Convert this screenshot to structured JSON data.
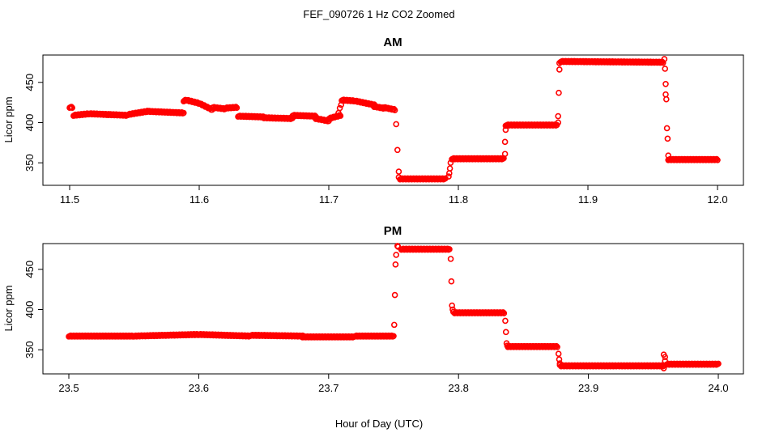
{
  "figure": {
    "title": "FEF_090726  1 Hz CO2 Zoomed",
    "xlabel": "Hour of Day (UTC)"
  },
  "colors": {
    "points": "#ff0000",
    "axes": "#000000"
  },
  "chart_data": [
    {
      "type": "scatter",
      "title": "AM",
      "ylabel": "Licor ppm",
      "xlim": [
        11.5,
        12.0
      ],
      "ylim": [
        322,
        484
      ],
      "xticks": [
        "11.5",
        "11.6",
        "11.7",
        "11.8",
        "11.9",
        "12.0"
      ],
      "yticks": [
        "350",
        "400",
        "450"
      ],
      "xtick_values": [
        11.5,
        11.6,
        11.7,
        11.8,
        11.9,
        12.0
      ],
      "ytick_values": [
        350,
        400,
        450
      ],
      "marker": "open-circle",
      "segments": [
        {
          "x": [
            11.5,
            11.502
          ],
          "y": [
            419,
            419
          ]
        },
        {
          "x": [
            11.503,
            11.515
          ],
          "y": [
            409,
            411
          ]
        },
        {
          "x": [
            11.515,
            11.53
          ],
          "y": [
            411,
            410
          ]
        },
        {
          "x": [
            11.53,
            11.545
          ],
          "y": [
            410,
            409
          ]
        },
        {
          "x": [
            11.545,
            11.56
          ],
          "y": [
            410,
            414
          ]
        },
        {
          "x": [
            11.56,
            11.588
          ],
          "y": [
            414,
            412
          ]
        },
        {
          "x": [
            11.588,
            11.59
          ],
          "y": [
            427,
            428
          ]
        },
        {
          "x": [
            11.59,
            11.6
          ],
          "y": [
            428,
            424
          ]
        },
        {
          "x": [
            11.6,
            11.61
          ],
          "y": [
            424,
            416
          ]
        },
        {
          "x": [
            11.61,
            11.62
          ],
          "y": [
            419,
            417
          ]
        },
        {
          "x": [
            11.62,
            11.629
          ],
          "y": [
            418,
            419
          ]
        },
        {
          "x": [
            11.63,
            11.65
          ],
          "y": [
            408,
            407
          ]
        },
        {
          "x": [
            11.65,
            11.672
          ],
          "y": [
            406,
            405
          ]
        },
        {
          "x": [
            11.672,
            11.69
          ],
          "y": [
            409,
            408
          ]
        },
        {
          "x": [
            11.69,
            11.7
          ],
          "y": [
            405,
            402
          ]
        },
        {
          "x": [
            11.7,
            11.709
          ],
          "y": [
            405,
            409
          ]
        },
        {
          "x": [
            11.71,
            11.72
          ],
          "y": [
            428,
            427
          ]
        },
        {
          "x": [
            11.72,
            11.735
          ],
          "y": [
            427,
            422
          ]
        },
        {
          "x": [
            11.735,
            11.742
          ],
          "y": [
            420,
            418
          ]
        },
        {
          "x": [
            11.742,
            11.751
          ],
          "y": [
            419,
            416
          ]
        },
        {
          "x": [
            11.755,
            11.79
          ],
          "y": [
            330,
            330
          ]
        },
        {
          "x": [
            11.795,
            11.835
          ],
          "y": [
            355,
            355
          ]
        },
        {
          "x": [
            11.837,
            11.876
          ],
          "y": [
            397,
            397
          ]
        },
        {
          "x": [
            11.879,
            11.958
          ],
          "y": [
            476,
            475
          ]
        },
        {
          "x": [
            11.962,
            12.0
          ],
          "y": [
            354,
            354
          ]
        }
      ],
      "transitions": [
        {
          "x": [
            11.7075,
            11.7085,
            11.7095
          ],
          "y": [
            412,
            418,
            422
          ]
        },
        {
          "x": [
            11.752,
            11.753,
            11.754,
            11.754
          ],
          "y": [
            398,
            366,
            339,
            332
          ]
        },
        {
          "x": [
            11.7925,
            11.793,
            11.7935,
            11.794
          ],
          "y": [
            333,
            337,
            343,
            350
          ]
        },
        {
          "x": [
            11.836,
            11.836,
            11.8365,
            11.8365
          ],
          "y": [
            361,
            376,
            391,
            396
          ]
        },
        {
          "x": [
            11.877,
            11.877,
            11.8775,
            11.878,
            11.878
          ],
          "y": [
            400,
            408,
            437,
            466,
            474
          ]
        },
        {
          "x": [
            11.959,
            11.9595,
            11.96,
            11.96,
            11.9605,
            11.961,
            11.9615,
            11.962
          ],
          "y": [
            479,
            467,
            448,
            435,
            429,
            393,
            380,
            359
          ]
        }
      ]
    },
    {
      "type": "scatter",
      "title": "PM",
      "ylabel": "Licor ppm",
      "xlim": [
        23.5,
        24.0
      ],
      "ylim": [
        320,
        482
      ],
      "xticks": [
        "23.5",
        "23.6",
        "23.7",
        "23.8",
        "23.9",
        "24.0"
      ],
      "yticks": [
        "350",
        "400",
        "450"
      ],
      "xtick_values": [
        23.5,
        23.6,
        23.7,
        23.8,
        23.9,
        24.0
      ],
      "ytick_values": [
        350,
        400,
        450
      ],
      "marker": "open-circle",
      "segments": [
        {
          "x": [
            23.5,
            23.55
          ],
          "y": [
            367,
            367
          ]
        },
        {
          "x": [
            23.55,
            23.6
          ],
          "y": [
            367,
            369
          ]
        },
        {
          "x": [
            23.6,
            23.64
          ],
          "y": [
            369,
            367
          ]
        },
        {
          "x": [
            23.64,
            23.68
          ],
          "y": [
            368,
            367
          ]
        },
        {
          "x": [
            23.68,
            23.72
          ],
          "y": [
            366,
            366
          ]
        },
        {
          "x": [
            23.72,
            23.75
          ],
          "y": [
            367,
            367
          ]
        },
        {
          "x": [
            23.756,
            23.793
          ],
          "y": [
            475,
            475
          ]
        },
        {
          "x": [
            23.797,
            23.835
          ],
          "y": [
            396,
            396
          ]
        },
        {
          "x": [
            23.838,
            23.876
          ],
          "y": [
            354,
            354
          ]
        },
        {
          "x": [
            23.879,
            23.958
          ],
          "y": [
            330,
            330
          ]
        },
        {
          "x": [
            23.96,
            24.0
          ],
          "y": [
            332,
            332
          ]
        }
      ],
      "transitions": [
        {
          "x": [
            23.7505,
            23.751,
            23.7515,
            23.752,
            23.753,
            23.7535
          ],
          "y": [
            381,
            418,
            456,
            468,
            479,
            478
          ]
        },
        {
          "x": [
            23.794,
            23.7945,
            23.795,
            23.7955,
            23.796
          ],
          "y": [
            463,
            435,
            405,
            400,
            397
          ]
        },
        {
          "x": [
            23.836,
            23.8365,
            23.837,
            23.8375
          ],
          "y": [
            386,
            372,
            358,
            355
          ]
        },
        {
          "x": [
            23.877,
            23.8775,
            23.878,
            23.878
          ],
          "y": [
            345,
            338,
            333,
            331
          ]
        },
        {
          "x": [
            23.958,
            23.958,
            23.959,
            23.959
          ],
          "y": [
            327,
            344,
            341,
            336
          ]
        }
      ]
    }
  ]
}
